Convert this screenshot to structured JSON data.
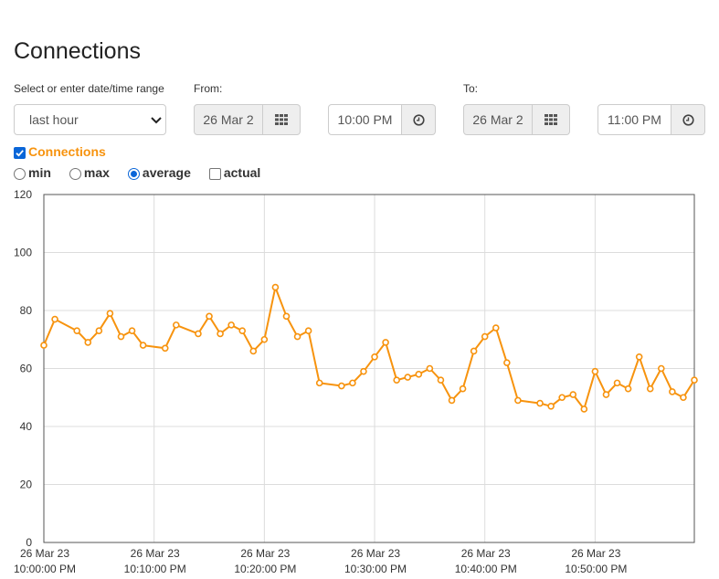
{
  "page": {
    "title": "Connections"
  },
  "range": {
    "label": "Select or enter date/time range",
    "selected": "last hour"
  },
  "from": {
    "label": "From:",
    "date": "26 Mar 2",
    "time": "10:00 PM"
  },
  "to": {
    "label": "To:",
    "date": "26 Mar 2",
    "time": "11:00 PM"
  },
  "series_toggle": {
    "label": "Connections",
    "checked": true
  },
  "modes": [
    {
      "label": "min",
      "selected": false
    },
    {
      "label": "max",
      "selected": false
    },
    {
      "label": "average",
      "selected": true
    },
    {
      "label": "actual",
      "selected": false
    }
  ],
  "colors": {
    "series": "#f7930e",
    "accent": "#0a66d8"
  },
  "chart_data": {
    "type": "line",
    "title": "",
    "xlabel": "",
    "ylabel": "",
    "ylim": [
      0,
      120
    ],
    "xlim": [
      "2023-03-26 22:00:00",
      "2023-03-26 22:59:00"
    ],
    "yticks": [
      "0",
      "20",
      "40",
      "60",
      "80",
      "100",
      "120"
    ],
    "xticks": [
      {
        "date": "26 Mar 23",
        "time": "10:00:00 PM"
      },
      {
        "date": "26 Mar 23",
        "time": "10:10:00 PM"
      },
      {
        "date": "26 Mar 23",
        "time": "10:20:00 PM"
      },
      {
        "date": "26 Mar 23",
        "time": "10:30:00 PM"
      },
      {
        "date": "26 Mar 23",
        "time": "10:40:00 PM"
      },
      {
        "date": "26 Mar 23",
        "time": "10:50:00 PM"
      }
    ],
    "grid": true,
    "series": [
      {
        "color": "#f7930e",
        "points": [
          [
            "22:00:00",
            68
          ],
          [
            "22:01:00",
            77
          ],
          [
            "22:03:00",
            73
          ],
          [
            "22:04:00",
            69
          ],
          [
            "22:05:00",
            73
          ],
          [
            "22:06:00",
            79
          ],
          [
            "22:07:00",
            71
          ],
          [
            "22:08:00",
            73
          ],
          [
            "22:09:00",
            68
          ],
          [
            "22:11:00",
            67
          ],
          [
            "22:12:00",
            75
          ],
          [
            "22:14:00",
            72
          ],
          [
            "22:15:00",
            78
          ],
          [
            "22:16:00",
            72
          ],
          [
            "22:17:00",
            75
          ],
          [
            "22:18:00",
            73
          ],
          [
            "22:19:00",
            66
          ],
          [
            "22:20:00",
            70
          ],
          [
            "22:21:00",
            88
          ],
          [
            "22:22:00",
            78
          ],
          [
            "22:23:00",
            71
          ],
          [
            "22:24:00",
            73
          ],
          [
            "22:25:00",
            55
          ],
          [
            "22:27:00",
            54
          ],
          [
            "22:28:00",
            55
          ],
          [
            "22:29:00",
            59
          ],
          [
            "22:30:00",
            64
          ],
          [
            "22:31:00",
            69
          ],
          [
            "22:32:00",
            56
          ],
          [
            "22:33:00",
            57
          ],
          [
            "22:34:00",
            58
          ],
          [
            "22:35:00",
            60
          ],
          [
            "22:36:00",
            56
          ],
          [
            "22:37:00",
            49
          ],
          [
            "22:38:00",
            53
          ],
          [
            "22:39:00",
            66
          ],
          [
            "22:40:00",
            71
          ],
          [
            "22:41:00",
            74
          ],
          [
            "22:42:00",
            62
          ],
          [
            "22:43:00",
            49
          ],
          [
            "22:45:00",
            48
          ],
          [
            "22:46:00",
            47
          ],
          [
            "22:47:00",
            50
          ],
          [
            "22:48:00",
            51
          ],
          [
            "22:49:00",
            46
          ],
          [
            "22:50:00",
            59
          ],
          [
            "22:51:00",
            51
          ],
          [
            "22:52:00",
            55
          ],
          [
            "22:53:00",
            53
          ],
          [
            "22:54:00",
            64
          ],
          [
            "22:55:00",
            53
          ],
          [
            "22:56:00",
            60
          ],
          [
            "22:57:00",
            52
          ],
          [
            "22:58:00",
            50
          ],
          [
            "22:59:00",
            56
          ]
        ]
      }
    ]
  }
}
